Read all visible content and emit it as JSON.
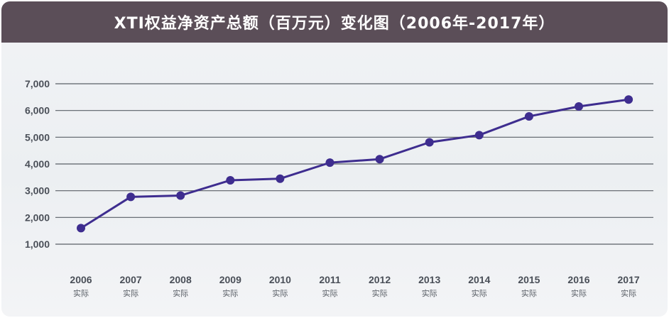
{
  "title": "XTI权益净资产总额（百万元）变化图（2006年-2017年）",
  "colors": {
    "header_bg": "#5b4e58",
    "series": "#3e2d8f",
    "grid": "#5a5f66",
    "text": "#4a4f58"
  },
  "chart_data": {
    "type": "line",
    "title": "XTI权益净资产总额（百万元）变化图（2006年-2017年）",
    "categories": [
      "2006",
      "2007",
      "2008",
      "2009",
      "2010",
      "2011",
      "2012",
      "2013",
      "2014",
      "2015",
      "2016",
      "2017"
    ],
    "category_sublabels": [
      "实际",
      "实际",
      "实际",
      "实际",
      "实际",
      "实际",
      "实际",
      "实际",
      "实际",
      "实际",
      "实际",
      "实际"
    ],
    "series": [
      {
        "values": [
          1600,
          2770,
          2820,
          3390,
          3450,
          4050,
          4180,
          4810,
          5080,
          5780,
          6150,
          6410
        ]
      }
    ],
    "yticks": [
      "1,000",
      "2,000",
      "3,000",
      "4,000",
      "5,000",
      "6,000",
      "7,000"
    ],
    "ytick_values": [
      1000,
      2000,
      3000,
      4000,
      5000,
      6000,
      7000
    ],
    "ylim": [
      1000,
      7000
    ],
    "xlabel": "",
    "ylabel": "",
    "grid": true,
    "legend": "none"
  }
}
